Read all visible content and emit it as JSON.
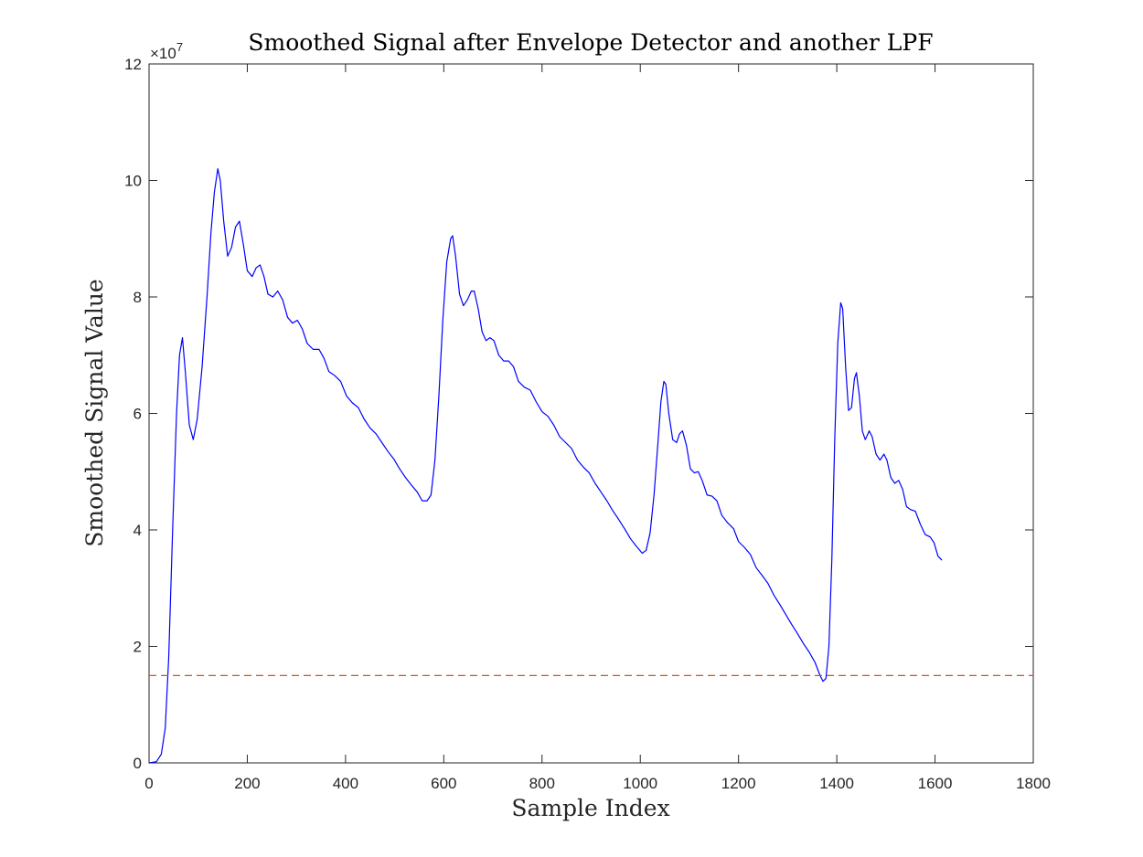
{
  "chart_data": {
    "type": "line",
    "title": "Smoothed Signal after Envelope Detector and another LPF",
    "xlabel": "Sample Index",
    "ylabel": "Smoothed Signal Value",
    "xlim": [
      0,
      1800
    ],
    "ylim": [
      0,
      12
    ],
    "y_exponent_label": "×10",
    "y_exponent_power": "7",
    "x_ticks": [
      0,
      200,
      400,
      600,
      800,
      1000,
      1200,
      1400,
      1600,
      1800
    ],
    "x_tick_labels": [
      "0",
      "200",
      "400",
      "600",
      "800",
      "1000",
      "1200",
      "1400",
      "1600",
      "1800"
    ],
    "y_ticks": [
      0,
      2,
      4,
      6,
      8,
      10,
      12
    ],
    "y_tick_labels": [
      "0",
      "2",
      "4",
      "6",
      "8",
      "10",
      "12"
    ],
    "grid": false,
    "series": [
      {
        "color": "#0000ff",
        "style": "solid",
        "points": [
          [
            0,
            0.0
          ],
          [
            15,
            0.02
          ],
          [
            25,
            0.15
          ],
          [
            33,
            0.6
          ],
          [
            40,
            1.8
          ],
          [
            48,
            4.0
          ],
          [
            56,
            6.0
          ],
          [
            62,
            7.0
          ],
          [
            68,
            7.3
          ],
          [
            74,
            6.7
          ],
          [
            82,
            5.8
          ],
          [
            90,
            5.55
          ],
          [
            98,
            5.9
          ],
          [
            108,
            6.8
          ],
          [
            118,
            8.0
          ],
          [
            126,
            9.1
          ],
          [
            133,
            9.8
          ],
          [
            140,
            10.2
          ],
          [
            145,
            10.0
          ],
          [
            152,
            9.3
          ],
          [
            160,
            8.7
          ],
          [
            168,
            8.85
          ],
          [
            176,
            9.2
          ],
          [
            184,
            9.3
          ],
          [
            192,
            8.9
          ],
          [
            200,
            8.45
          ],
          [
            210,
            8.35
          ],
          [
            218,
            8.5
          ],
          [
            226,
            8.55
          ],
          [
            234,
            8.35
          ],
          [
            242,
            8.05
          ],
          [
            252,
            8.0
          ],
          [
            262,
            8.1
          ],
          [
            272,
            7.95
          ],
          [
            282,
            7.65
          ],
          [
            292,
            7.55
          ],
          [
            302,
            7.6
          ],
          [
            312,
            7.45
          ],
          [
            322,
            7.2
          ],
          [
            334,
            7.1
          ],
          [
            346,
            7.1
          ],
          [
            356,
            6.95
          ],
          [
            366,
            6.72
          ],
          [
            378,
            6.65
          ],
          [
            390,
            6.55
          ],
          [
            402,
            6.3
          ],
          [
            414,
            6.18
          ],
          [
            426,
            6.1
          ],
          [
            438,
            5.9
          ],
          [
            450,
            5.75
          ],
          [
            462,
            5.65
          ],
          [
            474,
            5.5
          ],
          [
            486,
            5.35
          ],
          [
            498,
            5.22
          ],
          [
            510,
            5.05
          ],
          [
            522,
            4.9
          ],
          [
            534,
            4.77
          ],
          [
            546,
            4.65
          ],
          [
            556,
            4.5
          ],
          [
            566,
            4.5
          ],
          [
            574,
            4.6
          ],
          [
            582,
            5.2
          ],
          [
            590,
            6.3
          ],
          [
            598,
            7.6
          ],
          [
            606,
            8.6
          ],
          [
            614,
            9.0
          ],
          [
            618,
            9.05
          ],
          [
            624,
            8.7
          ],
          [
            632,
            8.05
          ],
          [
            640,
            7.85
          ],
          [
            648,
            7.95
          ],
          [
            656,
            8.1
          ],
          [
            662,
            8.1
          ],
          [
            670,
            7.8
          ],
          [
            678,
            7.4
          ],
          [
            686,
            7.25
          ],
          [
            694,
            7.3
          ],
          [
            702,
            7.25
          ],
          [
            712,
            7.0
          ],
          [
            722,
            6.9
          ],
          [
            732,
            6.9
          ],
          [
            742,
            6.8
          ],
          [
            752,
            6.55
          ],
          [
            764,
            6.45
          ],
          [
            776,
            6.4
          ],
          [
            788,
            6.2
          ],
          [
            800,
            6.03
          ],
          [
            812,
            5.95
          ],
          [
            824,
            5.8
          ],
          [
            836,
            5.6
          ],
          [
            848,
            5.5
          ],
          [
            860,
            5.4
          ],
          [
            872,
            5.2
          ],
          [
            884,
            5.08
          ],
          [
            896,
            4.98
          ],
          [
            908,
            4.8
          ],
          [
            920,
            4.65
          ],
          [
            932,
            4.5
          ],
          [
            944,
            4.33
          ],
          [
            956,
            4.18
          ],
          [
            968,
            4.02
          ],
          [
            980,
            3.85
          ],
          [
            992,
            3.72
          ],
          [
            1004,
            3.6
          ],
          [
            1012,
            3.65
          ],
          [
            1020,
            3.95
          ],
          [
            1028,
            4.6
          ],
          [
            1036,
            5.5
          ],
          [
            1042,
            6.2
          ],
          [
            1048,
            6.55
          ],
          [
            1052,
            6.5
          ],
          [
            1058,
            6.0
          ],
          [
            1066,
            5.55
          ],
          [
            1074,
            5.5
          ],
          [
            1080,
            5.65
          ],
          [
            1086,
            5.7
          ],
          [
            1094,
            5.45
          ],
          [
            1102,
            5.05
          ],
          [
            1110,
            4.98
          ],
          [
            1118,
            5.0
          ],
          [
            1126,
            4.85
          ],
          [
            1136,
            4.6
          ],
          [
            1146,
            4.58
          ],
          [
            1156,
            4.5
          ],
          [
            1166,
            4.25
          ],
          [
            1178,
            4.12
          ],
          [
            1190,
            4.02
          ],
          [
            1200,
            3.8
          ],
          [
            1212,
            3.7
          ],
          [
            1224,
            3.58
          ],
          [
            1236,
            3.35
          ],
          [
            1248,
            3.22
          ],
          [
            1260,
            3.08
          ],
          [
            1272,
            2.88
          ],
          [
            1284,
            2.72
          ],
          [
            1296,
            2.55
          ],
          [
            1308,
            2.38
          ],
          [
            1320,
            2.22
          ],
          [
            1332,
            2.05
          ],
          [
            1344,
            1.9
          ],
          [
            1356,
            1.72
          ],
          [
            1366,
            1.5
          ],
          [
            1372,
            1.4
          ],
          [
            1378,
            1.45
          ],
          [
            1384,
            2.0
          ],
          [
            1390,
            3.5
          ],
          [
            1396,
            5.6
          ],
          [
            1402,
            7.2
          ],
          [
            1408,
            7.9
          ],
          [
            1412,
            7.8
          ],
          [
            1418,
            6.8
          ],
          [
            1424,
            6.05
          ],
          [
            1430,
            6.1
          ],
          [
            1436,
            6.6
          ],
          [
            1440,
            6.7
          ],
          [
            1446,
            6.3
          ],
          [
            1452,
            5.7
          ],
          [
            1458,
            5.55
          ],
          [
            1466,
            5.7
          ],
          [
            1472,
            5.6
          ],
          [
            1480,
            5.3
          ],
          [
            1488,
            5.2
          ],
          [
            1496,
            5.3
          ],
          [
            1502,
            5.2
          ],
          [
            1510,
            4.9
          ],
          [
            1518,
            4.8
          ],
          [
            1526,
            4.85
          ],
          [
            1534,
            4.7
          ],
          [
            1542,
            4.4
          ],
          [
            1550,
            4.35
          ],
          [
            1560,
            4.32
          ],
          [
            1570,
            4.1
          ],
          [
            1580,
            3.92
          ],
          [
            1590,
            3.88
          ],
          [
            1598,
            3.78
          ],
          [
            1606,
            3.55
          ],
          [
            1614,
            3.48
          ]
        ]
      },
      {
        "color": "#d95319",
        "style": "dashed",
        "points": [
          [
            0,
            1.5
          ],
          [
            1800,
            1.5
          ]
        ]
      }
    ]
  }
}
